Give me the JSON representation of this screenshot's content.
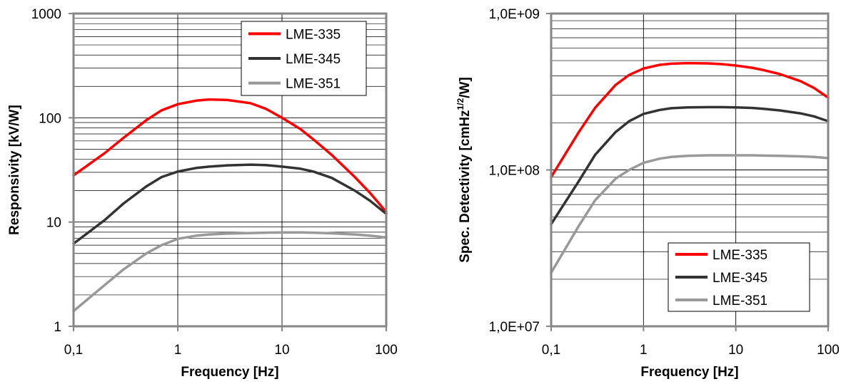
{
  "chart_data": [
    {
      "type": "line",
      "xlabel": "Frequency [Hz]",
      "ylabel": "Responsivity [kV/W]",
      "xscale": "log",
      "yscale": "log",
      "xlim": [
        0.1,
        100
      ],
      "ylim": [
        1,
        1000
      ],
      "xticks": [
        "0,1",
        "1",
        "10",
        "100"
      ],
      "yticks": [
        "1",
        "10",
        "100",
        "1000"
      ],
      "grid": true,
      "legend_position": "top-right",
      "series": [
        {
          "name": "LME-335",
          "color": "#ff0000",
          "x": [
            0.1,
            0.2,
            0.3,
            0.5,
            0.7,
            1,
            1.5,
            2,
            3,
            5,
            7,
            10,
            15,
            20,
            30,
            50,
            70,
            100
          ],
          "y": [
            28,
            46,
            64,
            95,
            118,
            135,
            146,
            150,
            148,
            138,
            122,
            100,
            78,
            62,
            44,
            27,
            19,
            12.5
          ]
        },
        {
          "name": "LME-345",
          "color": "#333333",
          "x": [
            0.1,
            0.2,
            0.3,
            0.5,
            0.7,
            1,
            1.5,
            2,
            3,
            5,
            7,
            10,
            15,
            20,
            30,
            50,
            70,
            100
          ],
          "y": [
            6.2,
            10.5,
            15,
            22,
            27,
            30.5,
            33,
            34,
            35,
            35.5,
            35.2,
            34,
            32.5,
            30.5,
            26.5,
            20,
            16,
            12
          ]
        },
        {
          "name": "LME-351",
          "color": "#999999",
          "x": [
            0.1,
            0.2,
            0.3,
            0.5,
            0.7,
            1,
            1.5,
            2,
            3,
            5,
            7,
            10,
            15,
            20,
            30,
            50,
            70,
            100
          ],
          "y": [
            1.4,
            2.5,
            3.5,
            5,
            6,
            6.9,
            7.4,
            7.6,
            7.75,
            7.85,
            7.9,
            7.95,
            7.95,
            7.9,
            7.8,
            7.6,
            7.4,
            7.1
          ]
        }
      ]
    },
    {
      "type": "line",
      "xlabel": "Frequency [Hz]",
      "ylabel_main": "Spec. Detectivity [cmHz",
      "ylabel_sup": "1/2",
      "ylabel_tail": "/W]",
      "xscale": "log",
      "yscale": "log",
      "xlim": [
        0.1,
        100
      ],
      "ylim": [
        10000000,
        1000000000
      ],
      "xticks": [
        "0,1",
        "1",
        "10",
        "100"
      ],
      "yticks": [
        "1,0E+07",
        "1,0E+08",
        "1,0E+09"
      ],
      "grid": true,
      "legend_position": "bottom-right",
      "series": [
        {
          "name": "LME-335",
          "color": "#ff0000",
          "x": [
            0.1,
            0.2,
            0.3,
            0.5,
            0.7,
            1,
            1.5,
            2,
            3,
            5,
            7,
            10,
            15,
            20,
            30,
            50,
            70,
            100
          ],
          "y": [
            90000000,
            175000000,
            250000000,
            350000000,
            405000000,
            445000000,
            470000000,
            478000000,
            482000000,
            480000000,
            475000000,
            465000000,
            450000000,
            435000000,
            410000000,
            370000000,
            335000000,
            290000000
          ]
        },
        {
          "name": "LME-345",
          "color": "#333333",
          "x": [
            0.1,
            0.2,
            0.3,
            0.5,
            0.7,
            1,
            1.5,
            2,
            3,
            5,
            7,
            10,
            15,
            20,
            30,
            50,
            70,
            100
          ],
          "y": [
            45000000,
            85000000,
            125000000,
            175000000,
            205000000,
            228000000,
            242000000,
            248000000,
            251000000,
            252000000,
            252000000,
            251000000,
            249000000,
            246000000,
            240000000,
            230000000,
            220000000,
            205000000
          ]
        },
        {
          "name": "LME-351",
          "color": "#999999",
          "x": [
            0.1,
            0.2,
            0.3,
            0.5,
            0.7,
            1,
            1.5,
            2,
            3,
            5,
            7,
            10,
            15,
            20,
            30,
            50,
            70,
            100
          ],
          "y": [
            22000000,
            44000000,
            64000000,
            88000000,
            100000000,
            111000000,
            118000000,
            121000000,
            123000000,
            124000000,
            124000000,
            124000000,
            124000000,
            123500000,
            123000000,
            122000000,
            121000000,
            119000000
          ]
        }
      ]
    }
  ]
}
